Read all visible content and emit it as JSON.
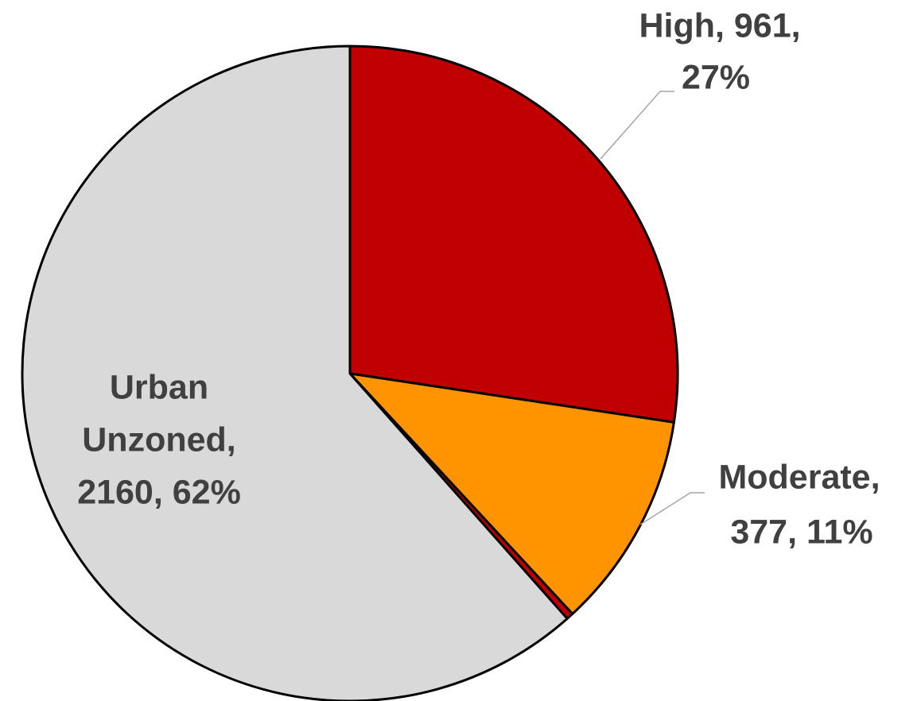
{
  "chart_data": {
    "type": "pie",
    "categories": [
      "High",
      "Moderate",
      null,
      "Urban Unzoned"
    ],
    "values": [
      961,
      377,
      12,
      2160
    ],
    "value_labels": [
      [
        "High, 961,",
        "27%"
      ],
      [
        "Moderate,",
        "377, 11%"
      ],
      null,
      [
        "Urban",
        "Unzoned,",
        "2160, 62%"
      ]
    ],
    "colors": [
      "#c00000",
      "#ff9400",
      "#c00000",
      "#d9d9d9"
    ]
  }
}
